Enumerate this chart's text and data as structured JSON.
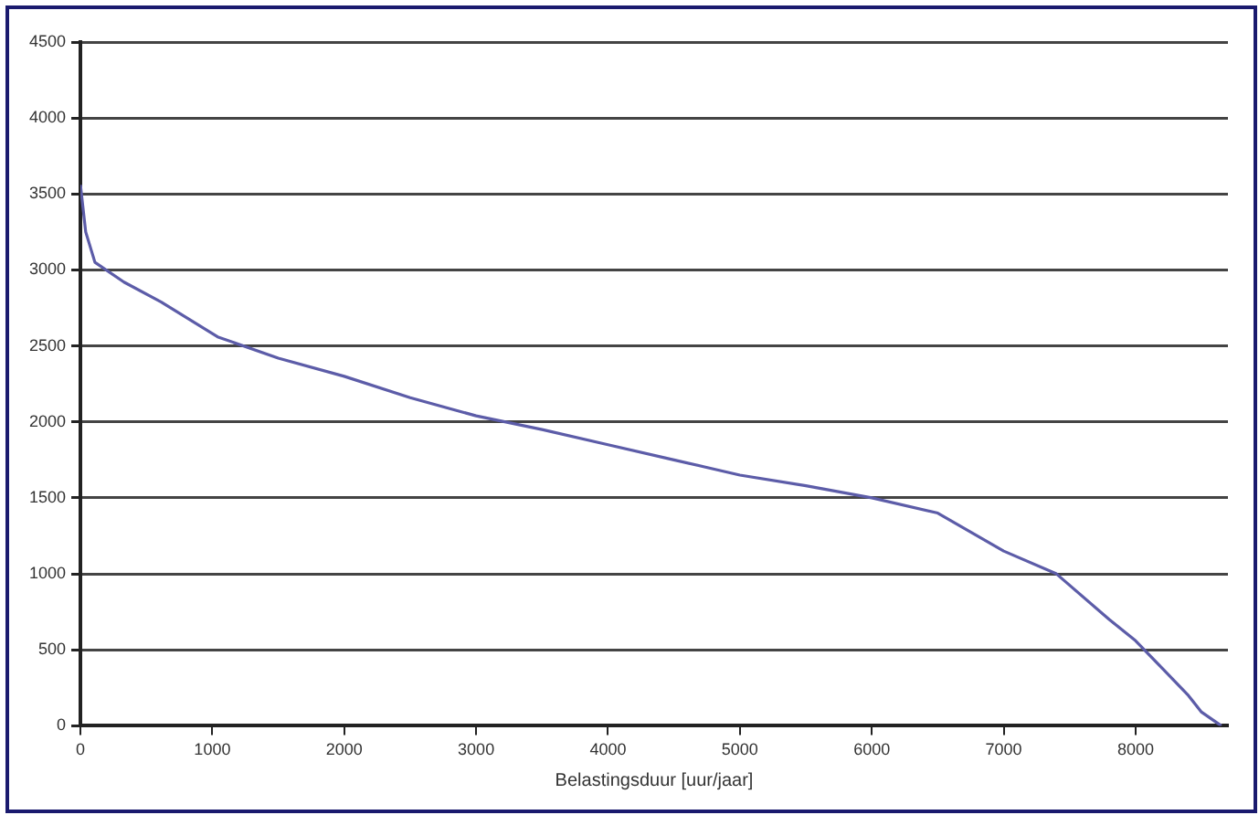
{
  "chart_data": {
    "type": "line",
    "xlabel": "Belastingsduur [uur/jaar]",
    "series": [
      {
        "color": "#5c5ca8",
        "x": [
          0,
          40,
          110,
          330,
          610,
          1040,
          1500,
          2000,
          2500,
          3000,
          3500,
          4000,
          4500,
          5000,
          5500,
          6000,
          6500,
          7000,
          7400,
          7800,
          8000,
          8200,
          8400,
          8500,
          8600,
          8650
        ],
        "values": [
          3560,
          3250,
          3050,
          2920,
          2790,
          2560,
          2420,
          2300,
          2160,
          2040,
          1950,
          1850,
          1750,
          1650,
          1580,
          1500,
          1400,
          1150,
          1000,
          700,
          560,
          380,
          200,
          90,
          30,
          0
        ]
      }
    ],
    "xlim": [
      0,
      8700
    ],
    "xticks": [
      0,
      1000,
      2000,
      3000,
      4000,
      5000,
      6000,
      7000,
      8000
    ],
    "ylim": [
      0,
      4500
    ],
    "yticks": [
      0,
      500,
      1000,
      1500,
      2000,
      2500,
      3000,
      3500,
      4000,
      4500
    ],
    "grid": "y",
    "legend": false,
    "marker": "none",
    "line_style": "solid"
  }
}
